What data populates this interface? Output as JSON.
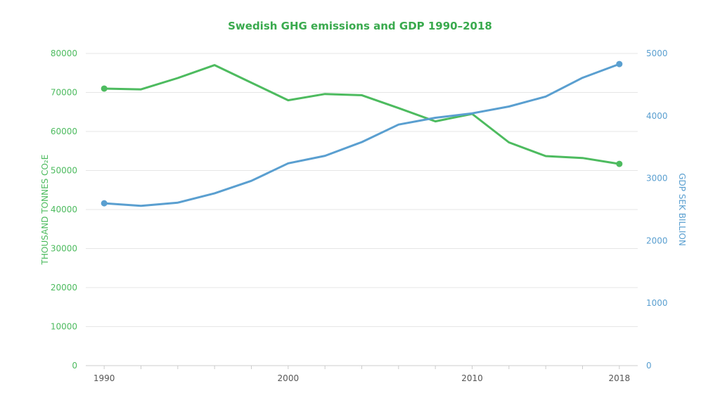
{
  "colors": {
    "ghg": "#4dbb5f",
    "gdp": "#5a9fd0",
    "title": "#3aaa4e",
    "grid": "#e6e6e6",
    "axis": "#cccccc",
    "xtick": "#555555"
  },
  "chart_data": {
    "type": "line",
    "title": "Swedish GHG emissions  and GDP 1990–2018",
    "x": [
      1990,
      1992,
      1994,
      1996,
      1998,
      2000,
      2002,
      2004,
      2006,
      2008,
      2010,
      2012,
      2014,
      2016,
      2018
    ],
    "xlim": [
      1989,
      2019
    ],
    "x_ticks": [
      "1990",
      "2000",
      "2010",
      "2018"
    ],
    "y_left": {
      "label": "THOUSAND TONNES  CO₂E",
      "ylim": [
        0,
        80000
      ],
      "ticks": [
        "0",
        "10000",
        "20000",
        "30000",
        "40000",
        "50000",
        "60000",
        "70000",
        "80000"
      ]
    },
    "y_right": {
      "label": "GDP SEK  BILLION",
      "ylim": [
        0,
        5000
      ],
      "ticks": [
        "0",
        "1000",
        "2000",
        "3000",
        "4000",
        "5000"
      ]
    },
    "grid": true,
    "legend": "none",
    "series": [
      {
        "axis": "left",
        "values": [
          71000,
          70800,
          73700,
          77000,
          72500,
          68000,
          69600,
          69300,
          66000,
          62600,
          64500,
          57200,
          53700,
          53200,
          51700
        ]
      },
      {
        "axis": "right",
        "values": [
          2600,
          2560,
          2610,
          2760,
          2960,
          3240,
          3360,
          3580,
          3860,
          3970,
          4040,
          4150,
          4310,
          4610,
          4830
        ]
      }
    ]
  }
}
